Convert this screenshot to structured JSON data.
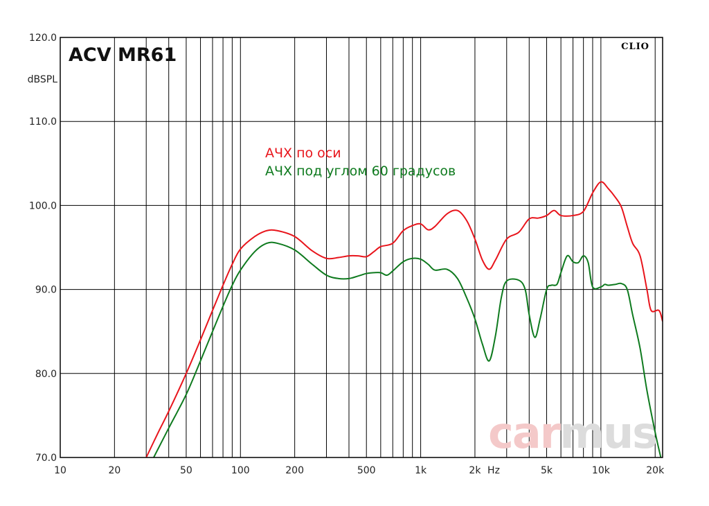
{
  "chart_data": {
    "type": "line",
    "title": "ACV MR61",
    "brand": "CLIO",
    "ylabel": "dBSPL",
    "xlabel": "Hz",
    "x_scale": "log",
    "xlim": [
      10,
      22000
    ],
    "ylim": [
      70,
      120
    ],
    "grid": true,
    "y_ticks": [
      {
        "value": 120,
        "label": "120.0"
      },
      {
        "value": 110,
        "label": "110.0"
      },
      {
        "value": 100,
        "label": "100.0"
      },
      {
        "value": 90,
        "label": "90.0"
      },
      {
        "value": 80,
        "label": "80.0"
      },
      {
        "value": 70,
        "label": "70.0"
      }
    ],
    "x_ticks": [
      {
        "value": 10,
        "label": "10"
      },
      {
        "value": 20,
        "label": "20"
      },
      {
        "value": 50,
        "label": "50"
      },
      {
        "value": 100,
        "label": "100"
      },
      {
        "value": 200,
        "label": "200"
      },
      {
        "value": 500,
        "label": "500"
      },
      {
        "value": 1000,
        "label": "1k"
      },
      {
        "value": 2000,
        "label": "2k"
      },
      {
        "value": 5000,
        "label": "5k"
      },
      {
        "value": 10000,
        "label": "10k"
      },
      {
        "value": 20000,
        "label": "20k"
      }
    ],
    "series": [
      {
        "name": "АЧХ по оси",
        "color": "#e8141b",
        "points": [
          [
            30,
            70
          ],
          [
            35,
            73
          ],
          [
            40,
            75.5
          ],
          [
            50,
            80
          ],
          [
            60,
            84
          ],
          [
            70,
            87.5
          ],
          [
            80,
            90.5
          ],
          [
            90,
            93
          ],
          [
            100,
            94.8
          ],
          [
            120,
            96.3
          ],
          [
            140,
            97
          ],
          [
            160,
            97
          ],
          [
            200,
            96.3
          ],
          [
            250,
            94.6
          ],
          [
            300,
            93.7
          ],
          [
            350,
            93.8
          ],
          [
            400,
            94
          ],
          [
            450,
            94
          ],
          [
            500,
            93.9
          ],
          [
            550,
            94.5
          ],
          [
            600,
            95.1
          ],
          [
            700,
            95.5
          ],
          [
            800,
            97
          ],
          [
            900,
            97.6
          ],
          [
            1000,
            97.8
          ],
          [
            1100,
            97.1
          ],
          [
            1200,
            97.5
          ],
          [
            1400,
            99
          ],
          [
            1600,
            99.4
          ],
          [
            1800,
            98.2
          ],
          [
            2000,
            96
          ],
          [
            2200,
            93.5
          ],
          [
            2400,
            92.4
          ],
          [
            2600,
            93.5
          ],
          [
            3000,
            96
          ],
          [
            3500,
            96.8
          ],
          [
            4000,
            98.4
          ],
          [
            4500,
            98.5
          ],
          [
            5000,
            98.8
          ],
          [
            5500,
            99.4
          ],
          [
            6000,
            98.8
          ],
          [
            7000,
            98.8
          ],
          [
            8000,
            99.3
          ],
          [
            9000,
            101.5
          ],
          [
            10000,
            102.8
          ],
          [
            11000,
            102
          ],
          [
            12000,
            101
          ],
          [
            13000,
            99.8
          ],
          [
            14000,
            97.5
          ],
          [
            15000,
            95.5
          ],
          [
            16500,
            94
          ],
          [
            18000,
            90
          ],
          [
            19000,
            87.5
          ],
          [
            21000,
            87.5
          ],
          [
            22000,
            86.2
          ]
        ]
      },
      {
        "name": "АЧХ под углом 60 градусов",
        "color": "#0e7a1e",
        "points": [
          [
            33,
            70
          ],
          [
            40,
            73.5
          ],
          [
            50,
            77.5
          ],
          [
            60,
            81.5
          ],
          [
            70,
            85
          ],
          [
            80,
            88
          ],
          [
            90,
            90.5
          ],
          [
            100,
            92.3
          ],
          [
            120,
            94.5
          ],
          [
            140,
            95.5
          ],
          [
            160,
            95.5
          ],
          [
            200,
            94.7
          ],
          [
            250,
            93
          ],
          [
            300,
            91.7
          ],
          [
            350,
            91.3
          ],
          [
            400,
            91.3
          ],
          [
            450,
            91.6
          ],
          [
            500,
            91.9
          ],
          [
            550,
            92
          ],
          [
            600,
            92
          ],
          [
            650,
            91.7
          ],
          [
            700,
            92.2
          ],
          [
            800,
            93.3
          ],
          [
            900,
            93.7
          ],
          [
            1000,
            93.6
          ],
          [
            1100,
            93
          ],
          [
            1200,
            92.3
          ],
          [
            1400,
            92.4
          ],
          [
            1600,
            91.3
          ],
          [
            1800,
            89
          ],
          [
            2000,
            86.5
          ],
          [
            2200,
            83.5
          ],
          [
            2400,
            81.5
          ],
          [
            2600,
            84.5
          ],
          [
            2800,
            89
          ],
          [
            3000,
            91
          ],
          [
            3500,
            91.1
          ],
          [
            3800,
            90
          ],
          [
            4000,
            87
          ],
          [
            4300,
            84.3
          ],
          [
            4600,
            86.5
          ],
          [
            5000,
            90
          ],
          [
            5300,
            90.5
          ],
          [
            5700,
            90.6
          ],
          [
            6000,
            92
          ],
          [
            6500,
            94
          ],
          [
            7000,
            93.3
          ],
          [
            7500,
            93.2
          ],
          [
            8000,
            94
          ],
          [
            8500,
            93.2
          ],
          [
            9000,
            90.3
          ],
          [
            10000,
            90.3
          ],
          [
            10500,
            90.6
          ],
          [
            11000,
            90.5
          ],
          [
            12000,
            90.6
          ],
          [
            13000,
            90.7
          ],
          [
            14000,
            90
          ],
          [
            15000,
            87
          ],
          [
            16500,
            83
          ],
          [
            18000,
            78
          ],
          [
            20000,
            73
          ],
          [
            21500,
            70
          ]
        ]
      }
    ]
  },
  "watermark": {
    "part1": "car",
    "part2": "mus",
    "color1": "#f4c9c9",
    "color2": "#dcdcdc"
  }
}
